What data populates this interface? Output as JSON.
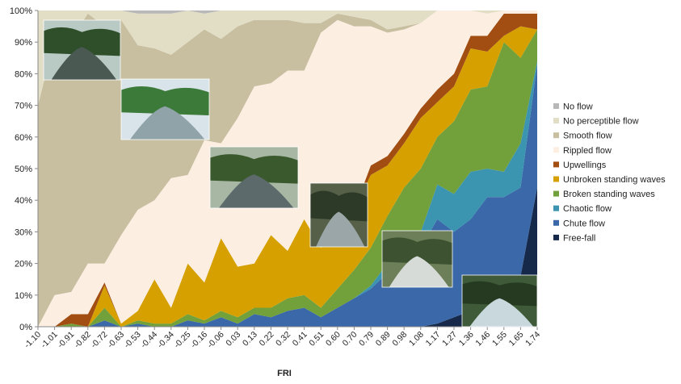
{
  "chart_data": {
    "type": "area",
    "stacked": true,
    "percent": true,
    "xlabel": "FRI",
    "ylabel": "",
    "ylim": [
      0,
      100
    ],
    "grid": false,
    "legend_placement": "right",
    "y_ticks": [
      "0%",
      "10%",
      "20%",
      "30%",
      "40%",
      "50%",
      "60%",
      "70%",
      "80%",
      "90%",
      "100%"
    ],
    "categories": [
      "-1.10",
      "-1.01",
      "-0.91",
      "-0.82",
      "-0.72",
      "-0.63",
      "-0.53",
      "-0.44",
      "-0.34",
      "-0.25",
      "-0.16",
      "-0.06",
      "0.03",
      "0.13",
      "0.22",
      "0.32",
      "0.41",
      "0.51",
      "0.60",
      "0.70",
      "0.79",
      "0.89",
      "0.98",
      "1.08",
      "1.17",
      "1.27",
      "1.36",
      "1.46",
      "1.55",
      "1.65",
      "1.74"
    ],
    "series": [
      {
        "name": "Free-fall",
        "color": "#17294a",
        "values": [
          0,
          0,
          0,
          0,
          0,
          0,
          0,
          0,
          0,
          0,
          0,
          0,
          0,
          0,
          0,
          0,
          0,
          0,
          0,
          0,
          0,
          0,
          0,
          0,
          1,
          3,
          5,
          4,
          5,
          16,
          44
        ]
      },
      {
        "name": "Chute flow",
        "color": "#3a68a8",
        "values": [
          0,
          0,
          0,
          0,
          2,
          0,
          1,
          0,
          0,
          2,
          1,
          3,
          1,
          4,
          3,
          5,
          6,
          3,
          6,
          9,
          12,
          17,
          21,
          25,
          33,
          27,
          29,
          37,
          36,
          28,
          39
        ]
      },
      {
        "name": "Chaotic flow",
        "color": "#3b95b0",
        "values": [
          0,
          0,
          0,
          0,
          0,
          0,
          0,
          0,
          0,
          0,
          0,
          0,
          0,
          0,
          0,
          0,
          0,
          0,
          0,
          0,
          1,
          3,
          5,
          5,
          11,
          12,
          15,
          9,
          8,
          14,
          1
        ]
      },
      {
        "name": "Broken standing waves",
        "color": "#72a03a",
        "values": [
          0,
          0,
          1,
          0,
          4,
          0,
          1,
          1,
          1,
          2,
          1,
          2,
          2,
          2,
          3,
          4,
          4,
          3,
          6,
          9,
          12,
          15,
          18,
          20,
          15,
          23,
          26,
          26,
          41,
          27,
          10
        ]
      },
      {
        "name": "Unbroken standing waves",
        "color": "#d6a100",
        "values": [
          0,
          0,
          0,
          0,
          7,
          1,
          3,
          14,
          5,
          16,
          12,
          23,
          16,
          14,
          23,
          15,
          24,
          19,
          17,
          19,
          23,
          16,
          14,
          16,
          11,
          11,
          13,
          11,
          2,
          10,
          0
        ]
      },
      {
        "name": "Upwellings",
        "color": "#a24e12",
        "values": [
          0,
          0,
          3,
          4,
          1,
          0,
          0,
          0,
          0,
          0,
          0,
          0,
          0,
          0,
          0,
          0,
          0,
          0,
          0,
          0,
          3,
          3,
          3,
          3,
          4,
          4,
          4,
          5,
          7,
          4,
          5
        ]
      },
      {
        "name": "Rippled flow",
        "color": "#fdeee2",
        "values": [
          0,
          10,
          7,
          16,
          6,
          28,
          32,
          25,
          41,
          28,
          45,
          30,
          47,
          56,
          48,
          57,
          47,
          68,
          68,
          58,
          44,
          39,
          33,
          27,
          25,
          20,
          8,
          7,
          1,
          1,
          1
        ]
      },
      {
        "name": "Smooth flow",
        "color": "#c8bea0",
        "values": [
          70,
          81,
          80,
          79,
          75,
          68,
          52,
          48,
          39,
          42,
          35,
          33,
          29,
          21,
          20,
          16,
          15,
          3,
          2,
          3,
          2,
          1,
          1,
          0,
          0,
          0,
          0,
          0,
          0,
          0,
          0
        ]
      },
      {
        "name": "No perceptible flow",
        "color": "#e2ddc5",
        "values": [
          30,
          9,
          9,
          1,
          5,
          3,
          10,
          11,
          13,
          10,
          5,
          9,
          5,
          3,
          3,
          3,
          4,
          4,
          1,
          2,
          3,
          6,
          5,
          4,
          0,
          0,
          0,
          1,
          0,
          0,
          0
        ]
      },
      {
        "name": "No flow",
        "color": "#b8b8b8",
        "values": [
          0,
          0,
          0,
          0,
          0,
          0,
          1,
          1,
          1,
          0,
          1,
          0,
          0,
          0,
          0,
          0,
          0,
          0,
          0,
          0,
          0,
          0,
          0,
          0,
          0,
          0,
          0,
          0,
          0,
          0,
          0
        ]
      }
    ],
    "legend_order": [
      "No flow",
      "No perceptible flow",
      "Smooth flow",
      "Rippled flow",
      "Upwellings",
      "Unbroken standing waves",
      "Broken standing waves",
      "Chaotic flow",
      "Chute flow",
      "Free-fall"
    ]
  },
  "photos": [
    {
      "name": "photo-calm-river",
      "palette": {
        "sky": "#b9c9c4",
        "trees": "#2e4f2a",
        "water": "#4a5a52"
      }
    },
    {
      "name": "photo-channel",
      "palette": {
        "sky": "#d9e4ea",
        "trees": "#3c7a3a",
        "water": "#8fa3a8"
      }
    },
    {
      "name": "photo-wide-river",
      "palette": {
        "sky": "#a7b7a4",
        "trees": "#3a5a2e",
        "water": "#5d6a6b"
      }
    },
    {
      "name": "photo-rocky-stream",
      "palette": {
        "sky": "#566048",
        "trees": "#2e3a28",
        "water": "#9aa6a8"
      }
    },
    {
      "name": "photo-rapids",
      "palette": {
        "sky": "#6d7f58",
        "trees": "#3c5230",
        "water": "#d6dbd7"
      }
    },
    {
      "name": "photo-waterfall",
      "palette": {
        "sky": "#3f5a38",
        "trees": "#263a22",
        "water": "#c9d8dc"
      }
    }
  ]
}
